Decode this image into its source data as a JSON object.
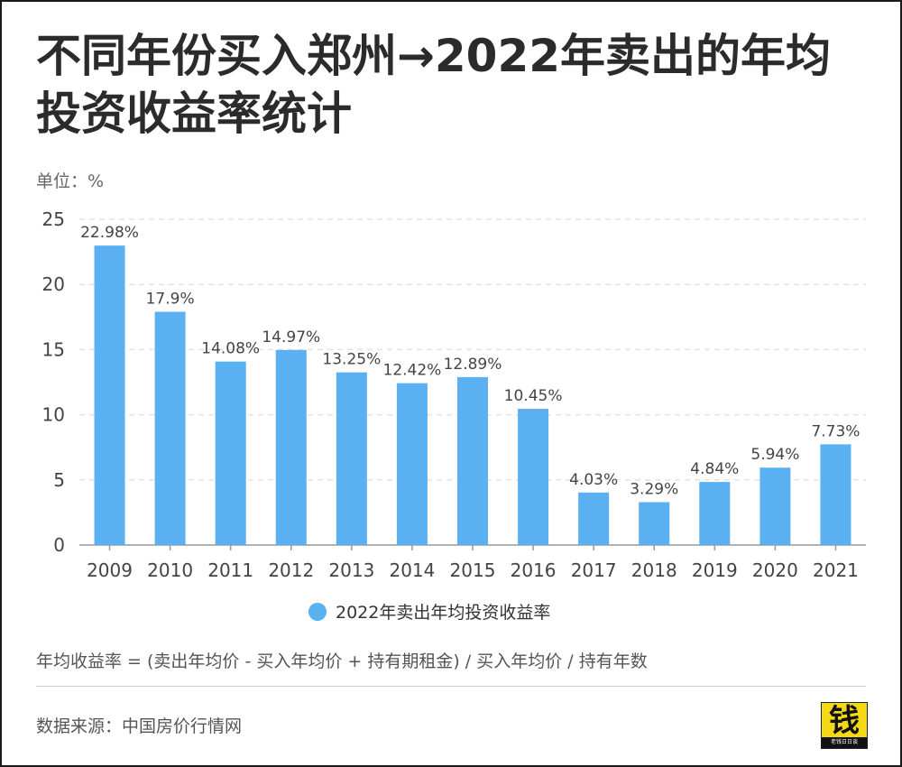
{
  "title": "不同年份买入郑州→2022年卖出的年均投资收益率统计",
  "unit_label": "单位：%",
  "formula": "年均收益率 = (卖出年均价 - 买入年均价 + 持有期租金) / 买入年均价 / 持有年数",
  "source": "数据来源：中国房价行情网",
  "logo": {
    "char": "钱",
    "subtext": "老钱日日谈"
  },
  "colors": {
    "bar": "#5ab0f0",
    "grid": "#e3e3e3",
    "axis": "#999999",
    "label": "#444444"
  },
  "chart_data": {
    "type": "bar",
    "title": "",
    "xlabel": "",
    "ylabel": "",
    "ylim": [
      0,
      25
    ],
    "yticks": [
      0,
      5,
      10,
      15,
      20,
      25
    ],
    "categories": [
      "2009",
      "2010",
      "2011",
      "2012",
      "2013",
      "2014",
      "2015",
      "2016",
      "2017",
      "2018",
      "2019",
      "2020",
      "2021"
    ],
    "series": [
      {
        "name": "2022年卖出年均投资收益率",
        "values": [
          22.98,
          17.9,
          14.08,
          14.97,
          13.25,
          12.42,
          12.89,
          10.45,
          4.03,
          3.29,
          4.84,
          5.94,
          7.73
        ],
        "labels": [
          "22.98%",
          "17.9%",
          "14.08%",
          "14.97%",
          "13.25%",
          "12.42%",
          "12.89%",
          "10.45%",
          "4.03%",
          "3.29%",
          "4.84%",
          "5.94%",
          "7.73%"
        ]
      }
    ],
    "grid": true,
    "legend_position": "bottom"
  }
}
